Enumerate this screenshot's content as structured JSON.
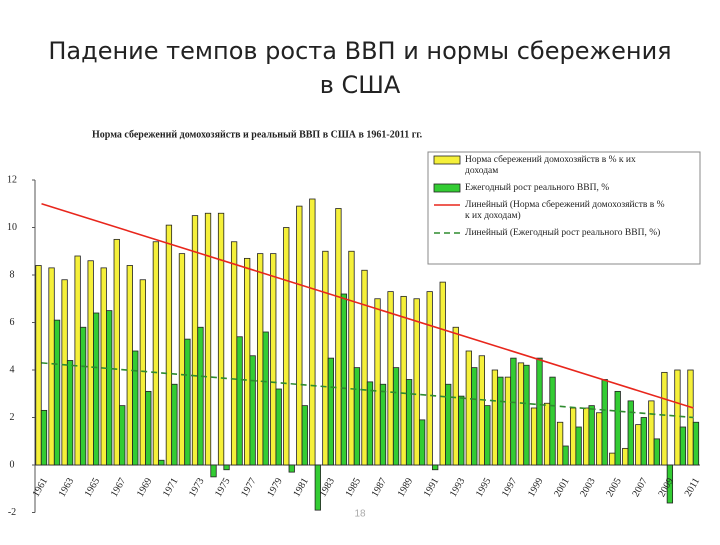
{
  "slide_title": [
    "Падение темпов роста ВВП и нормы сбережения",
    "в США"
  ],
  "page_number": "18",
  "chart_data": {
    "type": "bar",
    "title": "Норма сбережений домохозяйств и реальный ВВП в США в 1961-2011 гг.",
    "categories": [
      "1961",
      null,
      "1963",
      null,
      "1965",
      null,
      "1967",
      null,
      "1969",
      null,
      "1971",
      null,
      "1973",
      null,
      "1975",
      null,
      "1977",
      null,
      "1979",
      null,
      "1981",
      null,
      "1983",
      null,
      "1985",
      null,
      "1987",
      null,
      "1989",
      null,
      "1991",
      null,
      "1993",
      null,
      "1995",
      null,
      "1997",
      null,
      "1999",
      null,
      "2001",
      null,
      "2003",
      null,
      "2005",
      null,
      "2007",
      null,
      "2009",
      null,
      "2011"
    ],
    "series": [
      {
        "name": "Норма сбережений домохозяйств в % к их доходам",
        "color": "#f5f03a",
        "values": [
          8.4,
          8.3,
          7.8,
          8.8,
          8.6,
          8.3,
          9.5,
          8.4,
          7.8,
          9.4,
          10.1,
          8.9,
          10.5,
          10.6,
          10.6,
          9.4,
          8.7,
          8.9,
          8.9,
          10.0,
          10.9,
          11.2,
          9.0,
          10.8,
          9.0,
          8.2,
          7.0,
          7.3,
          7.1,
          7.0,
          7.3,
          7.7,
          5.8,
          4.8,
          4.6,
          4.0,
          3.7,
          4.3,
          2.4,
          2.6,
          1.8,
          2.4,
          2.4,
          2.2,
          0.5,
          0.7,
          1.7,
          2.7,
          3.9,
          4.0,
          4.0
        ]
      },
      {
        "name": "Ежегодный рост реального ВВП, %",
        "color": "#33cc33",
        "values": [
          2.3,
          6.1,
          4.4,
          5.8,
          6.4,
          6.5,
          2.5,
          4.8,
          3.1,
          0.2,
          3.4,
          5.3,
          5.8,
          -0.5,
          -0.2,
          5.4,
          4.6,
          5.6,
          3.2,
          -0.3,
          2.5,
          -1.9,
          4.5,
          7.2,
          4.1,
          3.5,
          3.4,
          4.1,
          3.6,
          1.9,
          -0.2,
          3.4,
          2.9,
          4.1,
          2.5,
          3.7,
          4.5,
          4.2,
          4.5,
          3.7,
          0.8,
          1.6,
          2.5,
          3.6,
          3.1,
          2.7,
          2.0,
          1.1,
          -1.6,
          1.6,
          1.8
        ]
      }
    ],
    "trendlines": [
      {
        "name": "Линейный (Норма сбережений домохозяйств в % к их доходам)",
        "color": "#e8261c",
        "dash": false,
        "values": [
          11.0,
          2.4
        ]
      },
      {
        "name": "Линейный (Ежегодный рост реального ВВП, %)",
        "color": "#2e8b2e",
        "dash": true,
        "values": [
          4.3,
          2.0
        ]
      }
    ],
    "ylim": [
      -2,
      12
    ],
    "yticks": [
      -2,
      0,
      2,
      4,
      6,
      8,
      10,
      12
    ]
  }
}
